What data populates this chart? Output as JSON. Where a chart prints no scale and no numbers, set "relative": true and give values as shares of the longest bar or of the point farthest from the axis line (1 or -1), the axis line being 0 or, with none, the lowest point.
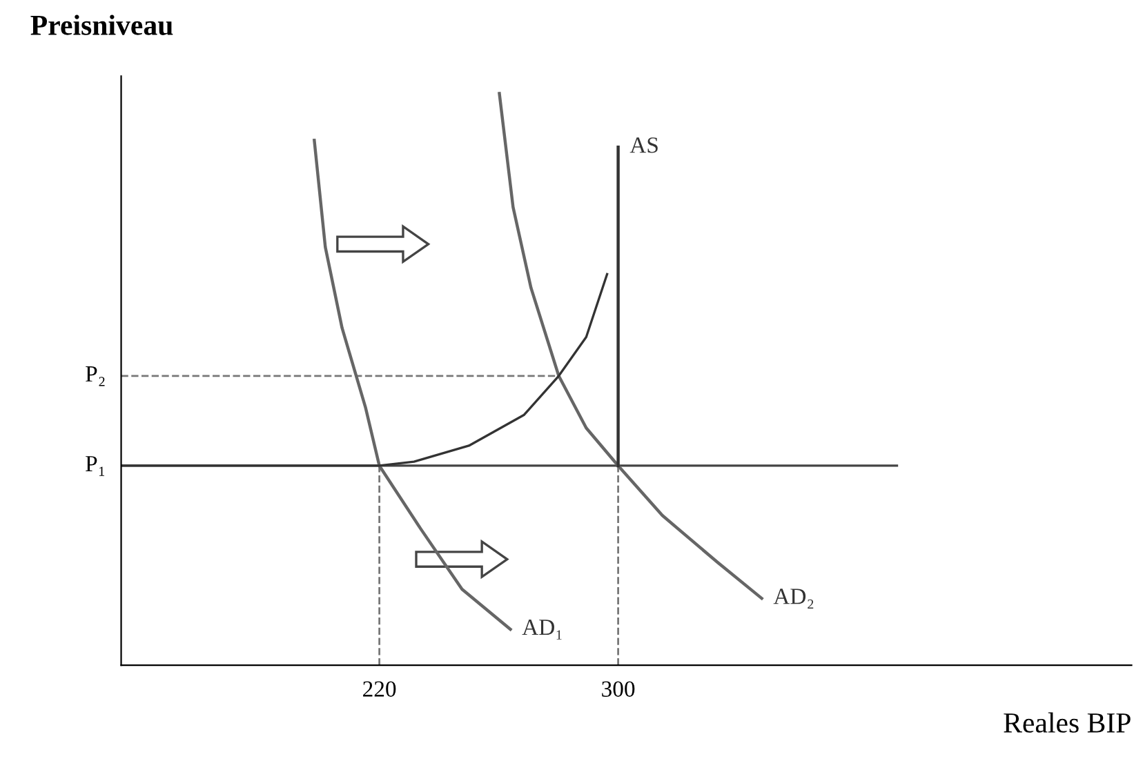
{
  "chart_data": {
    "type": "line",
    "relative": true,
    "xlabel": "Reales BIP",
    "ylabel": "Preisniveau",
    "xlim": [
      133.5,
      472
    ],
    "xticks": [
      220,
      300
    ],
    "series": [
      {
        "color": "#444444",
        "line_style": "solid",
        "x": [
          133.5,
          393.4
        ],
        "values": [
          0.349,
          0.349
        ]
      },
      {
        "color": "#777777",
        "line_style": "dashed",
        "x": [
          133.5,
          280.1
        ],
        "values": [
          0.506,
          0.506
        ]
      },
      {
        "color": "#777777",
        "line_style": "dashed",
        "x": [
          220,
          220
        ],
        "values": [
          0,
          0.349
        ]
      },
      {
        "color": "#777777",
        "line_style": "dashed",
        "x": [
          300,
          300
        ],
        "values": [
          0,
          0.349
        ]
      },
      {
        "name": "AD₁",
        "color": "#666666",
        "line_style": "solid",
        "x": [
          198.2,
          201.9,
          207.5,
          215.4,
          220,
          233.8,
          247.7,
          263.9
        ],
        "values": [
          0.918,
          0.731,
          0.59,
          0.45,
          0.349,
          0.239,
          0.133,
          0.063
        ]
      },
      {
        "name": "AD₂",
        "color": "#666666",
        "line_style": "solid",
        "x": [
          260.2,
          264.8,
          270.8,
          280.1,
          289.3,
          300,
          314.8,
          333.3,
          348.1
        ],
        "values": [
          1.0,
          0.801,
          0.66,
          0.506,
          0.415,
          0.349,
          0.262,
          0.18,
          0.117
        ]
      },
      {
        "color": "#333333",
        "line_style": "solid",
        "x": [
          133.5,
          220,
          231.6,
          250,
          268.5,
          280.1,
          289.3,
          296.3
        ],
        "values": [
          0.349,
          0.349,
          0.356,
          0.384,
          0.438,
          0.506,
          0.574,
          0.684
        ]
      },
      {
        "name": "AS",
        "color": "#333333",
        "line_style": "solid",
        "x": [
          300,
          300
        ],
        "values": [
          0.349,
          0.906
        ]
      }
    ],
    "annotations": [
      "P₁",
      "P₂"
    ]
  }
}
